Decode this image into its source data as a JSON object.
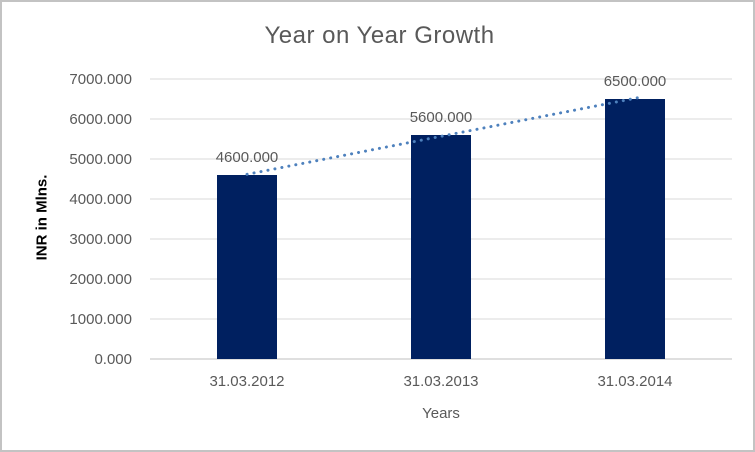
{
  "chart_data": {
    "type": "bar",
    "title": "Year on Year Growth",
    "categories": [
      "31.03.2012",
      "31.03.2013",
      "31.03.2014"
    ],
    "values": [
      4600,
      5600,
      6500
    ],
    "data_labels": [
      "4600.000",
      "5600.000",
      "6500.000"
    ],
    "xlabel": "Years",
    "ylabel": "INR in Mlns.",
    "ylim": [
      0,
      7000
    ],
    "ytick_step": 1000,
    "ytick_labels": [
      "0.000",
      "1000.000",
      "2000.000",
      "3000.000",
      "4000.000",
      "5000.000",
      "6000.000",
      "7000.000"
    ],
    "grid": true,
    "legend": "none",
    "trendline": {
      "type": "linear",
      "style": "dotted",
      "color": "#4e81bd"
    },
    "colors": {
      "bar": "#002060",
      "gridline": "#d9d9d9",
      "axis_line": "#bfbfbf",
      "tick_text": "#595959",
      "title_text": "#595959",
      "y_axis_title_text": "#000000",
      "background": "#ffffff",
      "border": "#c3c3c3"
    }
  }
}
